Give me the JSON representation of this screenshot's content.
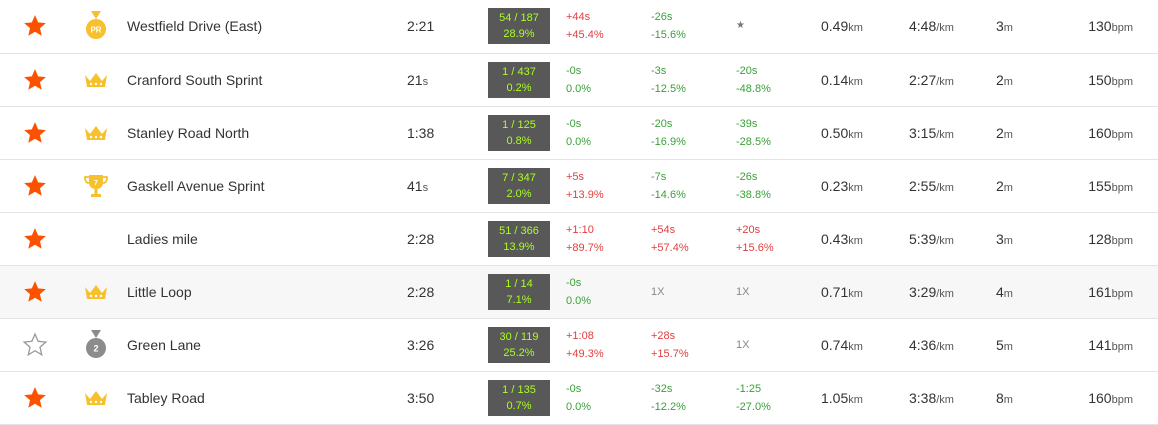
{
  "rows": [
    {
      "starred": true,
      "award": "pr",
      "award_label": "PR",
      "name": "Westfield Drive (East)",
      "time_main": "2:21",
      "time_unit": "",
      "rank": "54 / 187",
      "rank_pct": "28.9%",
      "d1a": "+44s",
      "d1b": "+45.4%",
      "d1_class": "pos",
      "d2a": "-26s",
      "d2b": "-15.6%",
      "d2_class": "neg",
      "d3a": "★",
      "d3b": "",
      "d3_class": "muted star-sm",
      "d3_single": true,
      "dist": "0.49",
      "dist_unit": "km",
      "pace": "4:48",
      "pace_unit": "/km",
      "elev": "3",
      "elev_unit": "m",
      "hr": "130",
      "hr_unit": "bpm"
    },
    {
      "starred": true,
      "award": "crown",
      "award_label": "",
      "name": "Cranford South Sprint",
      "time_main": "21",
      "time_unit": "s",
      "rank": "1 / 437",
      "rank_pct": "0.2%",
      "d1a": "-0s",
      "d1b": "0.0%",
      "d1_class": "neg",
      "d2a": "-3s",
      "d2b": "-12.5%",
      "d2_class": "neg",
      "d3a": "-20s",
      "d3b": "-48.8%",
      "d3_class": "neg",
      "d3_single": false,
      "dist": "0.14",
      "dist_unit": "km",
      "pace": "2:27",
      "pace_unit": "/km",
      "elev": "2",
      "elev_unit": "m",
      "hr": "150",
      "hr_unit": "bpm"
    },
    {
      "starred": true,
      "award": "crown",
      "award_label": "",
      "name": "Stanley Road North",
      "time_main": "1:38",
      "time_unit": "",
      "rank": "1 / 125",
      "rank_pct": "0.8%",
      "d1a": "-0s",
      "d1b": "0.0%",
      "d1_class": "neg",
      "d2a": "-20s",
      "d2b": "-16.9%",
      "d2_class": "neg",
      "d3a": "-39s",
      "d3b": "-28.5%",
      "d3_class": "neg",
      "d3_single": false,
      "dist": "0.50",
      "dist_unit": "km",
      "pace": "3:15",
      "pace_unit": "/km",
      "elev": "2",
      "elev_unit": "m",
      "hr": "160",
      "hr_unit": "bpm"
    },
    {
      "starred": true,
      "award": "trophy",
      "award_label": "7",
      "name": "Gaskell Avenue Sprint",
      "time_main": "41",
      "time_unit": "s",
      "rank": "7 / 347",
      "rank_pct": "2.0%",
      "d1a": "+5s",
      "d1b": "+13.9%",
      "d1_class": "pos",
      "d2a": "-7s",
      "d2b": "-14.6%",
      "d2_class": "neg",
      "d3a": "-26s",
      "d3b": "-38.8%",
      "d3_class": "neg",
      "d3_single": false,
      "dist": "0.23",
      "dist_unit": "km",
      "pace": "2:55",
      "pace_unit": "/km",
      "elev": "2",
      "elev_unit": "m",
      "hr": "155",
      "hr_unit": "bpm"
    },
    {
      "starred": true,
      "award": "none",
      "award_label": "",
      "name": "Ladies mile",
      "time_main": "2:28",
      "time_unit": "",
      "rank": "51 / 366",
      "rank_pct": "13.9%",
      "d1a": "+1:10",
      "d1b": "+89.7%",
      "d1_class": "pos",
      "d2a": "+54s",
      "d2b": "+57.4%",
      "d2_class": "pos",
      "d3a": "+20s",
      "d3b": "+15.6%",
      "d3_class": "pos",
      "d3_single": false,
      "dist": "0.43",
      "dist_unit": "km",
      "pace": "5:39",
      "pace_unit": "/km",
      "elev": "3",
      "elev_unit": "m",
      "hr": "128",
      "hr_unit": "bpm"
    },
    {
      "starred": true,
      "award": "crown",
      "award_label": "",
      "name": "Little Loop",
      "time_main": "2:28",
      "time_unit": "",
      "rank": "1 / 14",
      "rank_pct": "7.1%",
      "d1a": "-0s",
      "d1b": "0.0%",
      "d1_class": "neg",
      "d2a": "1X",
      "d2b": "",
      "d2_class": "muted",
      "d2_single": true,
      "d3a": "1X",
      "d3b": "",
      "d3_class": "muted",
      "d3_single": true,
      "dist": "0.71",
      "dist_unit": "km",
      "pace": "3:29",
      "pace_unit": "/km",
      "elev": "4",
      "elev_unit": "m",
      "hr": "161",
      "hr_unit": "bpm"
    },
    {
      "starred": false,
      "award": "silver",
      "award_label": "2",
      "name": "Green Lane",
      "time_main": "3:26",
      "time_unit": "",
      "rank": "30 / 119",
      "rank_pct": "25.2%",
      "d1a": "+1:08",
      "d1b": "+49.3%",
      "d1_class": "pos",
      "d2a": "+28s",
      "d2b": "+15.7%",
      "d2_class": "pos",
      "d3a": "1X",
      "d3b": "",
      "d3_class": "muted",
      "d3_single": true,
      "dist": "0.74",
      "dist_unit": "km",
      "pace": "4:36",
      "pace_unit": "/km",
      "elev": "5",
      "elev_unit": "m",
      "hr": "141",
      "hr_unit": "bpm"
    },
    {
      "starred": true,
      "award": "crown",
      "award_label": "",
      "name": "Tabley Road",
      "time_main": "3:50",
      "time_unit": "",
      "rank": "1 / 135",
      "rank_pct": "0.7%",
      "d1a": "-0s",
      "d1b": "0.0%",
      "d1_class": "neg",
      "d2a": "-32s",
      "d2b": "-12.2%",
      "d2_class": "neg",
      "d3a": "-1:25",
      "d3b": "-27.0%",
      "d3_class": "neg",
      "d3_single": false,
      "dist": "1.05",
      "dist_unit": "km",
      "pace": "3:38",
      "pace_unit": "/km",
      "elev": "8",
      "elev_unit": "m",
      "hr": "160",
      "hr_unit": "bpm"
    }
  ],
  "colors": {
    "star_filled": "#fc5200",
    "star_empty": "#999999",
    "gold": "#f6c12d",
    "silver": "#8c8c8c",
    "rank_bg": "#585858",
    "rank_text": "#aaff22"
  }
}
